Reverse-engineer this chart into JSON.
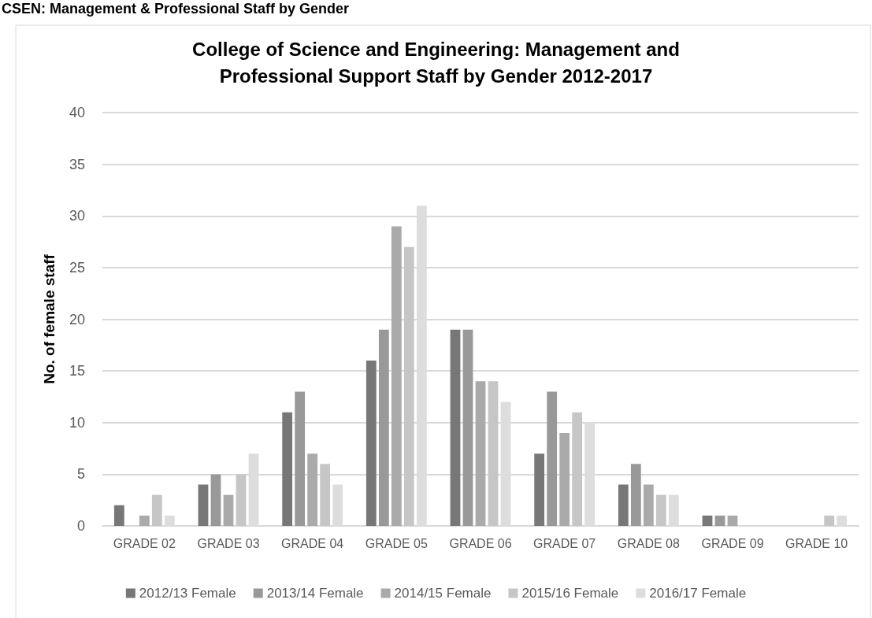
{
  "chart_data": {
    "type": "bar",
    "title": "College of Science and Engineering: Management and\nProfessional Support Staff by Gender 2012-2017",
    "ylabel": "No. of female staff",
    "annotations": [
      "CSEN: Management & Professional Staff by Gender"
    ],
    "categories": [
      "GRADE 02",
      "GRADE 03",
      "GRADE 04",
      "GRADE 05",
      "GRADE 06",
      "GRADE 07",
      "GRADE 08",
      "GRADE 09",
      "GRADE 10"
    ],
    "series": [
      {
        "name": "2012/13 Female",
        "color": "#777777",
        "values": [
          2,
          4,
          11,
          16,
          19,
          7,
          4,
          1,
          0
        ]
      },
      {
        "name": "2013/14 Female",
        "color": "#999999",
        "values": [
          0,
          5,
          13,
          19,
          19,
          13,
          6,
          1,
          0
        ]
      },
      {
        "name": "2014/15 Female",
        "color": "#aaaaaa",
        "values": [
          1,
          3,
          7,
          29,
          14,
          9,
          4,
          1,
          0
        ]
      },
      {
        "name": "2015/16 Female",
        "color": "#c6c6c6",
        "values": [
          3,
          5,
          6,
          27,
          14,
          11,
          3,
          0,
          1
        ]
      },
      {
        "name": "2016/17 Female",
        "color": "#dddddd",
        "values": [
          1,
          7,
          4,
          31,
          12,
          10,
          3,
          0,
          1
        ]
      }
    ],
    "ylim": [
      0,
      40
    ],
    "yticks": [
      0,
      5,
      10,
      15,
      20,
      25,
      30,
      35,
      40
    ],
    "grid": "y",
    "legend": "bottom"
  }
}
